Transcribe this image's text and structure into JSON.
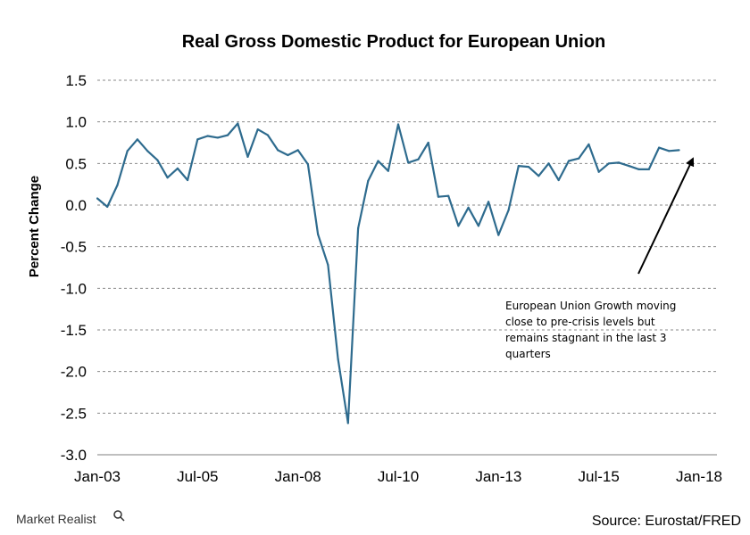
{
  "chart_data": {
    "type": "line",
    "title": "Real Gross Domestic Product for European Union",
    "ylabel": "Percent Change",
    "xlabel": "",
    "ylim": [
      -3.0,
      1.5
    ],
    "yticks": [
      "1.5",
      "1.0",
      "0.5",
      "0.0",
      "-0.5",
      "-1.0",
      "-1.5",
      "-2.0",
      "-2.5",
      "-3.0"
    ],
    "xticks": [
      "Jan-03",
      "Jul-05",
      "Jan-08",
      "Jul-10",
      "Jan-13",
      "Jul-15",
      "Jan-18"
    ],
    "xrange": [
      "2003-Q1",
      "2018-Q1"
    ],
    "grid": "horizontal dashed",
    "line_color": "#2e6b8e",
    "series": [
      {
        "x": [
          "2003-Q1",
          "2003-Q2",
          "2003-Q3",
          "2003-Q4",
          "2004-Q1",
          "2004-Q2",
          "2004-Q3",
          "2004-Q4",
          "2005-Q1",
          "2005-Q2",
          "2005-Q3",
          "2005-Q4",
          "2006-Q1",
          "2006-Q2",
          "2006-Q3",
          "2006-Q4",
          "2007-Q1",
          "2007-Q2",
          "2007-Q3",
          "2007-Q4",
          "2008-Q1",
          "2008-Q2",
          "2008-Q3",
          "2008-Q4",
          "2009-Q1",
          "2009-Q2",
          "2009-Q3",
          "2009-Q4",
          "2010-Q1",
          "2010-Q2",
          "2010-Q3",
          "2010-Q4",
          "2011-Q1",
          "2011-Q2",
          "2011-Q3",
          "2011-Q4",
          "2012-Q1",
          "2012-Q2",
          "2012-Q3",
          "2012-Q4",
          "2013-Q1",
          "2013-Q2",
          "2013-Q3",
          "2013-Q4",
          "2014-Q1",
          "2014-Q2",
          "2014-Q3",
          "2014-Q4",
          "2015-Q1",
          "2015-Q2",
          "2015-Q3",
          "2015-Q4",
          "2016-Q1",
          "2016-Q2",
          "2016-Q3",
          "2016-Q4",
          "2017-Q1",
          "2017-Q2",
          "2017-Q3"
        ],
        "values": [
          0.08,
          -0.02,
          0.24,
          0.65,
          0.79,
          0.65,
          0.54,
          0.33,
          0.44,
          0.3,
          0.79,
          0.83,
          0.81,
          0.84,
          0.98,
          0.58,
          0.91,
          0.84,
          0.66,
          0.6,
          0.66,
          0.49,
          -0.35,
          -0.72,
          -1.85,
          -2.62,
          -0.28,
          0.29,
          0.53,
          0.41,
          0.97,
          0.51,
          0.55,
          0.75,
          0.1,
          0.11,
          -0.25,
          -0.03,
          -0.25,
          0.04,
          -0.36,
          -0.06,
          0.47,
          0.46,
          0.35,
          0.5,
          0.3,
          0.53,
          0.56,
          0.73,
          0.4,
          0.5,
          0.51,
          0.47,
          0.43,
          0.43,
          0.69,
          0.65,
          0.66
        ]
      }
    ],
    "annotation": {
      "lines": [
        "European Union Growth moving",
        "close to pre-crisis levels but",
        "remains stagnant in the last 3",
        "quarters"
      ]
    }
  },
  "footer": {
    "brand": "Market Realist",
    "source": "Source:  Eurostat/FRED"
  }
}
